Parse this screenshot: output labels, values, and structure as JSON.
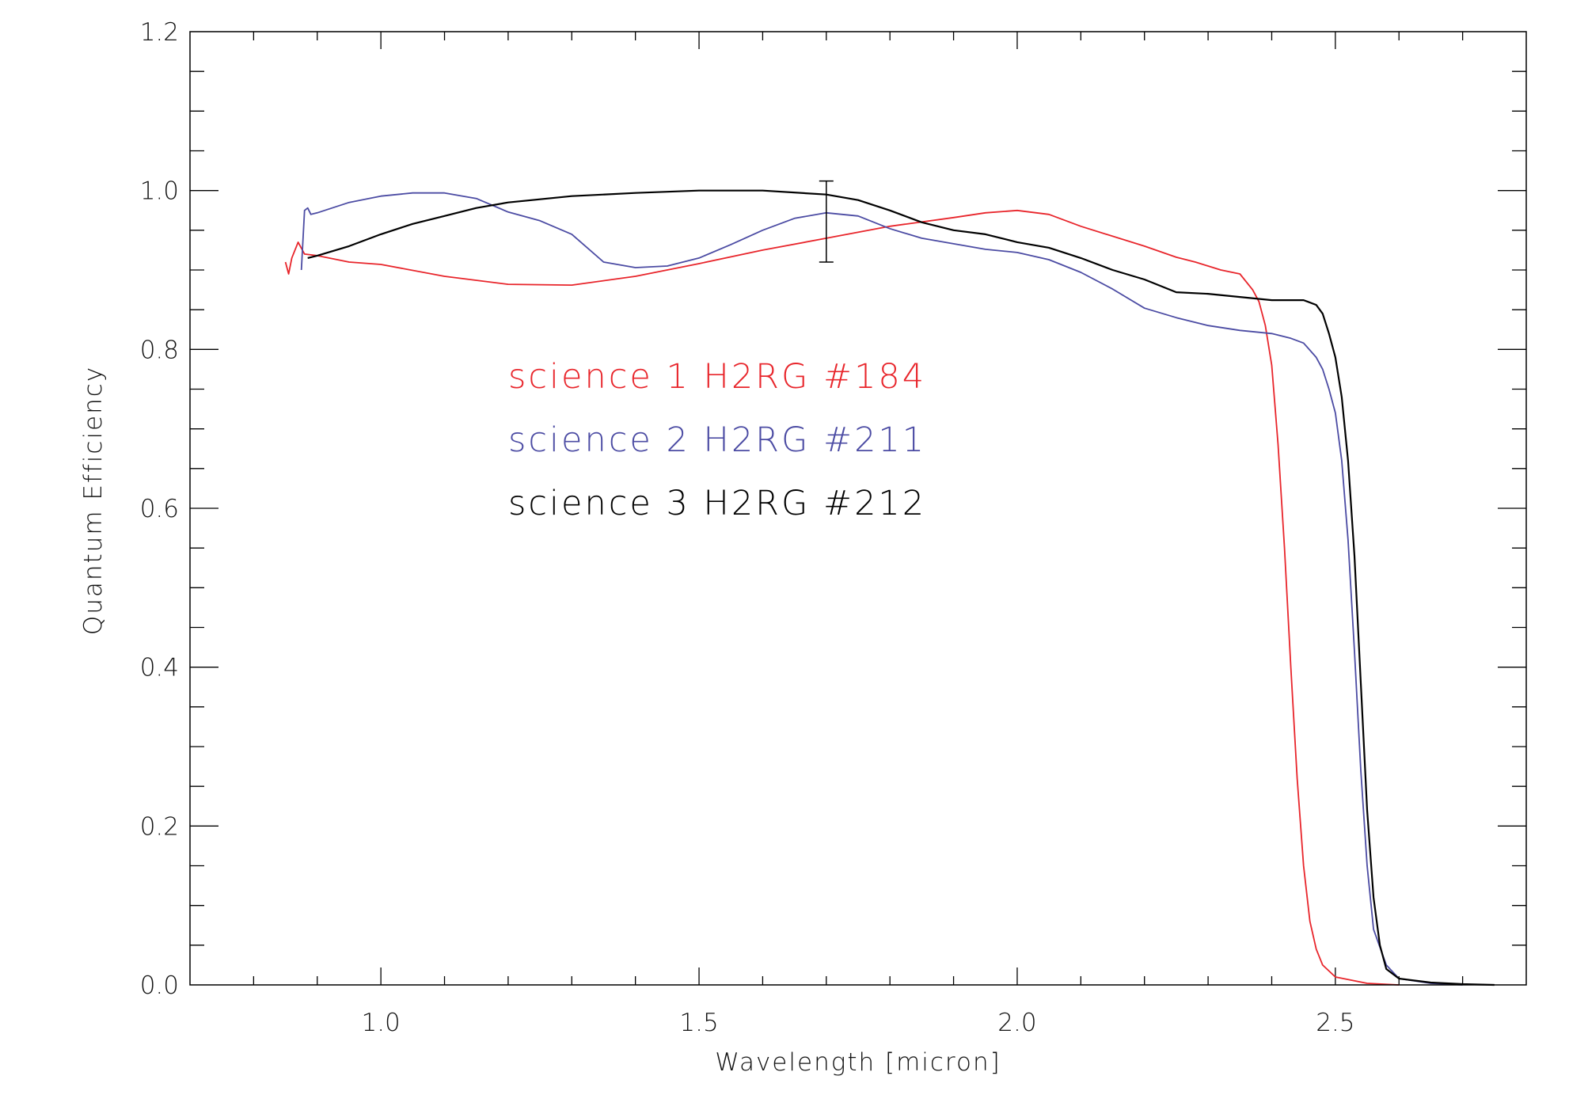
{
  "chart_data": {
    "type": "line",
    "title": "",
    "xlabel": "Wavelength [micron]",
    "ylabel": "Quantum Efficiency",
    "xlim": [
      0.7,
      2.8
    ],
    "ylim": [
      0.0,
      1.2
    ],
    "x_ticks": [
      1.0,
      1.5,
      2.0,
      2.5
    ],
    "x_tick_labels": [
      "1.0",
      "1.5",
      "2.0",
      "2.5"
    ],
    "y_ticks": [
      0.0,
      0.2,
      0.4,
      0.6,
      0.8,
      1.0,
      1.2
    ],
    "y_tick_labels": [
      "0.0",
      "0.2",
      "0.4",
      "0.6",
      "0.8",
      "1.0",
      "1.2"
    ],
    "grid": false,
    "legend_position": "center-left",
    "series": [
      {
        "name": "science 1 H2RG #184",
        "color": "#e8252b",
        "x": [
          0.85,
          0.855,
          0.86,
          0.87,
          0.88,
          0.9,
          0.95,
          1.0,
          1.1,
          1.2,
          1.3,
          1.4,
          1.5,
          1.6,
          1.7,
          1.8,
          1.9,
          1.95,
          2.0,
          2.05,
          2.1,
          2.2,
          2.25,
          2.28,
          2.3,
          2.32,
          2.35,
          2.37,
          2.38,
          2.39,
          2.4,
          2.41,
          2.42,
          2.43,
          2.44,
          2.45,
          2.46,
          2.47,
          2.48,
          2.5,
          2.55,
          2.6
        ],
        "y": [
          0.91,
          0.895,
          0.915,
          0.935,
          0.92,
          0.918,
          0.91,
          0.907,
          0.892,
          0.882,
          0.881,
          0.892,
          0.908,
          0.925,
          0.94,
          0.955,
          0.966,
          0.972,
          0.975,
          0.97,
          0.955,
          0.93,
          0.916,
          0.91,
          0.905,
          0.9,
          0.895,
          0.875,
          0.86,
          0.83,
          0.78,
          0.68,
          0.55,
          0.4,
          0.26,
          0.15,
          0.08,
          0.045,
          0.025,
          0.01,
          0.002,
          0.0
        ]
      },
      {
        "name": "science 2 H2RG #211",
        "color": "#4b4ba3",
        "x": [
          0.875,
          0.88,
          0.885,
          0.89,
          0.9,
          0.95,
          1.0,
          1.05,
          1.1,
          1.15,
          1.2,
          1.25,
          1.3,
          1.35,
          1.4,
          1.45,
          1.5,
          1.55,
          1.6,
          1.65,
          1.7,
          1.75,
          1.8,
          1.85,
          1.9,
          1.95,
          2.0,
          2.05,
          2.1,
          2.15,
          2.2,
          2.25,
          2.3,
          2.35,
          2.4,
          2.43,
          2.45,
          2.47,
          2.48,
          2.49,
          2.5,
          2.51,
          2.52,
          2.53,
          2.54,
          2.55,
          2.56,
          2.58,
          2.6,
          2.65,
          2.7
        ],
        "y": [
          0.9,
          0.975,
          0.978,
          0.97,
          0.972,
          0.985,
          0.993,
          0.997,
          0.997,
          0.99,
          0.973,
          0.962,
          0.945,
          0.91,
          0.903,
          0.905,
          0.915,
          0.932,
          0.95,
          0.965,
          0.972,
          0.968,
          0.952,
          0.94,
          0.933,
          0.926,
          0.922,
          0.913,
          0.897,
          0.876,
          0.852,
          0.84,
          0.83,
          0.824,
          0.82,
          0.814,
          0.808,
          0.79,
          0.775,
          0.75,
          0.72,
          0.66,
          0.56,
          0.42,
          0.27,
          0.15,
          0.07,
          0.025,
          0.008,
          0.002,
          0.0
        ]
      },
      {
        "name": "science 3 H2RG #212",
        "color": "#000000",
        "x": [
          0.885,
          0.9,
          0.95,
          1.0,
          1.05,
          1.1,
          1.15,
          1.2,
          1.3,
          1.4,
          1.5,
          1.6,
          1.7,
          1.75,
          1.8,
          1.85,
          1.9,
          1.95,
          2.0,
          2.05,
          2.1,
          2.15,
          2.2,
          2.25,
          2.3,
          2.35,
          2.4,
          2.45,
          2.47,
          2.48,
          2.49,
          2.5,
          2.51,
          2.52,
          2.53,
          2.54,
          2.55,
          2.56,
          2.57,
          2.58,
          2.6,
          2.65,
          2.7,
          2.75
        ],
        "y": [
          0.915,
          0.918,
          0.93,
          0.945,
          0.958,
          0.968,
          0.978,
          0.985,
          0.993,
          0.997,
          1.0,
          1.0,
          0.995,
          0.988,
          0.975,
          0.96,
          0.95,
          0.945,
          0.935,
          0.928,
          0.915,
          0.9,
          0.888,
          0.872,
          0.87,
          0.866,
          0.862,
          0.862,
          0.856,
          0.845,
          0.82,
          0.79,
          0.74,
          0.66,
          0.54,
          0.38,
          0.22,
          0.11,
          0.05,
          0.02,
          0.008,
          0.003,
          0.001,
          0.0
        ]
      }
    ],
    "error_bar": {
      "x": 1.7,
      "y_low": 0.91,
      "y_high": 1.012
    }
  }
}
